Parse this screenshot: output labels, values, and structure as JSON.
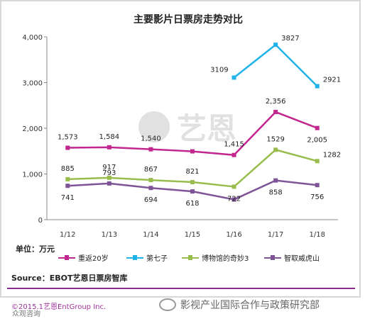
{
  "chart_data": {
    "type": "line",
    "title": "主要影片日票房走势对比",
    "categories": [
      "1/12",
      "1/13",
      "1/14",
      "1/15",
      "1/16",
      "1/17",
      "1/18"
    ],
    "ylim": [
      0,
      4000
    ],
    "yticks": [
      "0",
      "1,000",
      "2,000",
      "3,000",
      "4,000"
    ],
    "grid": false,
    "legend_position": "bottom",
    "series": [
      {
        "name": "重返20岁",
        "color": "#c2268f",
        "values": [
          1573,
          1584,
          1540,
          1495,
          1415,
          2356,
          2005
        ],
        "labels": [
          "1,573",
          "1,584",
          "1,540",
          "",
          "1,415",
          "2,356",
          "2,005"
        ]
      },
      {
        "name": "第七子",
        "color": "#1fb3e8",
        "values": [
          null,
          null,
          null,
          null,
          3109,
          3827,
          2921
        ],
        "labels": [
          "",
          "",
          "",
          "",
          "3109",
          "3827",
          "2921"
        ]
      },
      {
        "name": "博物馆的奇妙3",
        "color": "#99bd4c",
        "values": [
          885,
          917,
          867,
          821,
          722,
          1529,
          1282
        ],
        "labels": [
          "885",
          "917",
          "867",
          "821",
          "722",
          "1529",
          "1282"
        ]
      },
      {
        "name": "智取威虎山",
        "color": "#7f5497",
        "values": [
          741,
          793,
          694,
          618,
          441,
          858,
          756
        ],
        "labels": [
          "741",
          "793",
          "694",
          "618",
          "",
          "858",
          "756"
        ]
      }
    ]
  },
  "unit_label": "单位：万元",
  "source_label": "Source：EBOT艺恩日票房智库",
  "copyright": "©2015.1艺恩EntGroup Inc.",
  "brand": "众观咨询",
  "wechat_text": "影视产业国际合作与政策研究部",
  "watermark_text": "艺恩"
}
